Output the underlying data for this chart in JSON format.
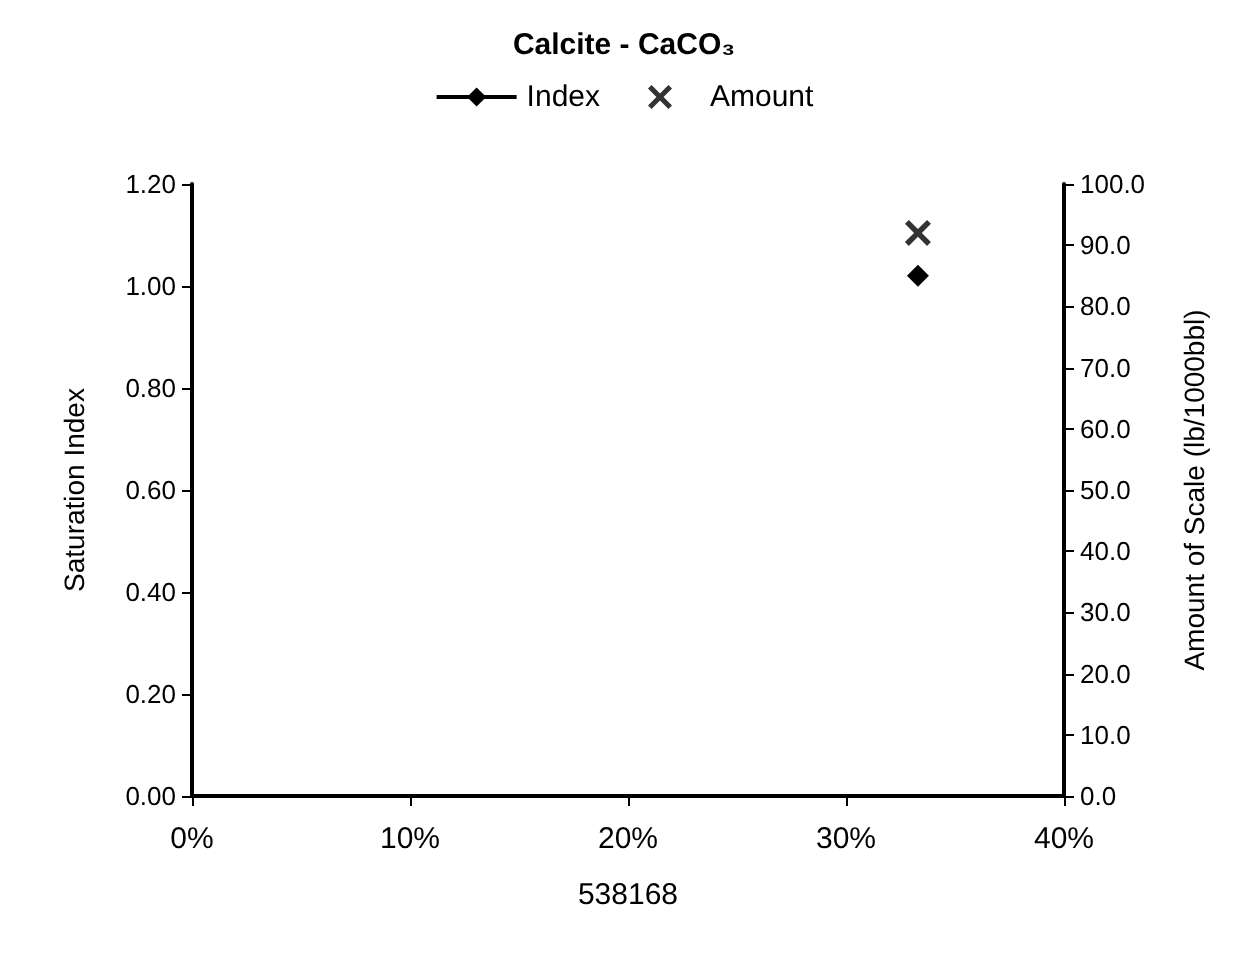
{
  "chart_data": {
    "type": "scatter",
    "title": "Calcite - CaCO₃",
    "xlabel": "538168",
    "ylabel": "Saturation Index",
    "y2label": "Amount of Scale (lb/1000bbl)",
    "x": [
      33.3
    ],
    "series": [
      {
        "name": "Index",
        "type": "line",
        "color": "#000000",
        "marker": "diamond",
        "values": [
          1.02
        ]
      },
      {
        "name": "Amount",
        "color": "#000000",
        "marker": "cross",
        "axis": "y2",
        "values": [
          92
        ]
      }
    ],
    "xlim": [
      0,
      40
    ],
    "xticks": [
      {
        "value": 0,
        "label": "0%"
      },
      {
        "value": 10,
        "label": "10%"
      },
      {
        "value": 20,
        "label": "20%"
      },
      {
        "value": 30,
        "label": "30%"
      },
      {
        "value": 40,
        "label": "40%"
      }
    ],
    "ylim": [
      0,
      1.2
    ],
    "yticks": [
      {
        "value": 0,
        "label": "0.00"
      },
      {
        "value": 0.2,
        "label": "0.20"
      },
      {
        "value": 0.4,
        "label": "0.40"
      },
      {
        "value": 0.6,
        "label": "0.60"
      },
      {
        "value": 0.8,
        "label": "0.80"
      },
      {
        "value": 1,
        "label": "1.00"
      },
      {
        "value": 1.2,
        "label": "1.20"
      }
    ],
    "y2lim": [
      0,
      100
    ],
    "y2ticks": [
      {
        "value": 0,
        "label": "0.0"
      },
      {
        "value": 10,
        "label": "10.0"
      },
      {
        "value": 20,
        "label": "20.0"
      },
      {
        "value": 30,
        "label": "30.0"
      },
      {
        "value": 40,
        "label": "40.0"
      },
      {
        "value": 50,
        "label": "50.0"
      },
      {
        "value": 60,
        "label": "60.0"
      },
      {
        "value": 70,
        "label": "70.0"
      },
      {
        "value": 80,
        "label": "80.0"
      },
      {
        "value": 90,
        "label": "90.0"
      },
      {
        "value": 100,
        "label": "100.0"
      }
    ],
    "grid": false,
    "legend": "top"
  }
}
